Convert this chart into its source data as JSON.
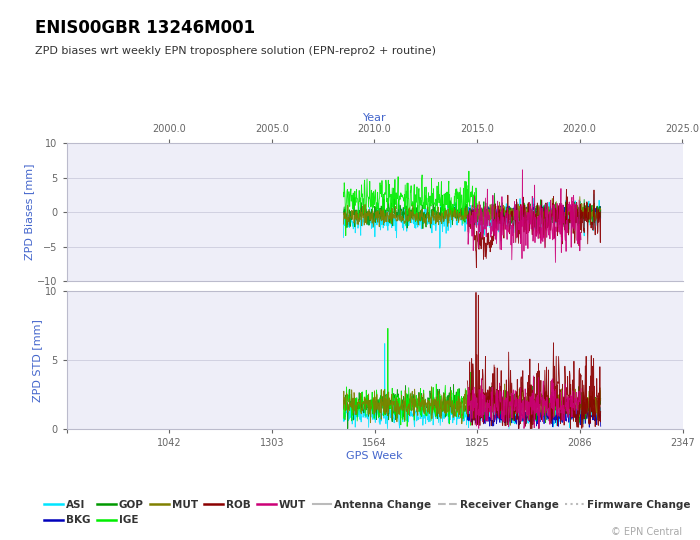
{
  "title": "ENIS00GBR 13246M001",
  "subtitle": "ZPD biases wrt weekly EPN troposphere solution (EPN-repro2 + routine)",
  "xlabel_top": "Year",
  "xlabel_bottom": "GPS Week",
  "ylabel_top": "ZPD Biases [mm]",
  "ylabel_bottom": "ZPD STD [mm]",
  "copyright": "© EPN Central",
  "year_ticks": [
    2000.0,
    2005.0,
    2010.0,
    2015.0,
    2020.0,
    2025.0
  ],
  "gps_ticks": [
    781,
    1042,
    1303,
    1564,
    1825,
    2086,
    2347
  ],
  "gps_tick_labels": [
    "",
    "1042",
    "1303",
    "1564",
    "1825",
    "2086",
    "2347"
  ],
  "ylim_bias": [
    -10,
    10
  ],
  "ylim_std": [
    0,
    10
  ],
  "yticks_bias": [
    -10,
    -5,
    0,
    5,
    10
  ],
  "yticks_std": [
    0,
    5,
    10
  ],
  "colors": {
    "ASI": "#00e5ff",
    "BKG": "#0000bb",
    "GOP": "#009900",
    "IGE": "#00ee00",
    "MUT": "#808000",
    "ROB": "#8b0000",
    "WUT": "#cc0077"
  },
  "background_color": "#ffffff",
  "plot_bg": "#eeeef8",
  "axis_label_color": "#4466cc",
  "title_color": "#000000",
  "subtitle_color": "#333333",
  "grid_color": "#ccccdd",
  "tick_label_color": "#666666",
  "copyright_color": "#aaaaaa"
}
